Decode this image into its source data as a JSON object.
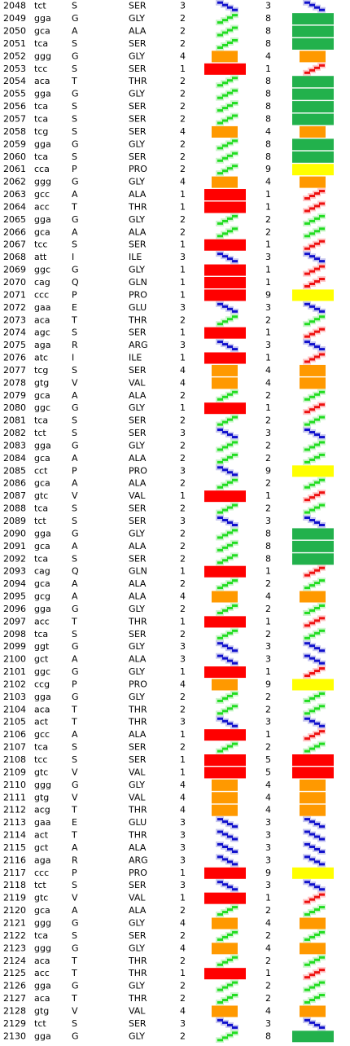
{
  "table": {
    "rows": [
      [
        2048,
        "tct",
        "S",
        "SER",
        3,
        3
      ],
      [
        2049,
        "gga",
        "G",
        "GLY",
        2,
        8
      ],
      [
        2050,
        "gca",
        "A",
        "ALA",
        2,
        8
      ],
      [
        2051,
        "tca",
        "S",
        "SER",
        2,
        8
      ],
      [
        2052,
        "ggg",
        "G",
        "GLY",
        4,
        4
      ],
      [
        2053,
        "tcc",
        "S",
        "SER",
        1,
        1
      ],
      [
        2054,
        "aca",
        "T",
        "THR",
        2,
        8
      ],
      [
        2055,
        "gga",
        "G",
        "GLY",
        2,
        8
      ],
      [
        2056,
        "tca",
        "S",
        "SER",
        2,
        8
      ],
      [
        2057,
        "tca",
        "S",
        "SER",
        2,
        8
      ],
      [
        2058,
        "tcg",
        "S",
        "SER",
        4,
        4
      ],
      [
        2059,
        "gga",
        "G",
        "GLY",
        2,
        8
      ],
      [
        2060,
        "tca",
        "S",
        "SER",
        2,
        8
      ],
      [
        2061,
        "cca",
        "P",
        "PRO",
        2,
        9
      ],
      [
        2062,
        "ggg",
        "G",
        "GLY",
        4,
        4
      ],
      [
        2063,
        "gcc",
        "A",
        "ALA",
        1,
        1
      ],
      [
        2064,
        "acc",
        "T",
        "THR",
        1,
        1
      ],
      [
        2065,
        "gga",
        "G",
        "GLY",
        2,
        2
      ],
      [
        2066,
        "gca",
        "A",
        "ALA",
        2,
        2
      ],
      [
        2067,
        "tcc",
        "S",
        "SER",
        1,
        1
      ],
      [
        2068,
        "att",
        "I",
        "ILE",
        3,
        3
      ],
      [
        2069,
        "ggc",
        "G",
        "GLY",
        1,
        1
      ],
      [
        2070,
        "cag",
        "Q",
        "GLN",
        1,
        1
      ],
      [
        2071,
        "ccc",
        "P",
        "PRO",
        1,
        9
      ],
      [
        2072,
        "gaa",
        "E",
        "GLU",
        3,
        3
      ],
      [
        2073,
        "aca",
        "T",
        "THR",
        2,
        2
      ],
      [
        2074,
        "agc",
        "S",
        "SER",
        1,
        1
      ],
      [
        2075,
        "aga",
        "R",
        "ARG",
        3,
        3
      ],
      [
        2076,
        "atc",
        "I",
        "ILE",
        1,
        1
      ],
      [
        2077,
        "tcg",
        "S",
        "SER",
        4,
        4
      ],
      [
        2078,
        "gtg",
        "V",
        "VAL",
        4,
        4
      ],
      [
        2079,
        "gca",
        "A",
        "ALA",
        2,
        2
      ],
      [
        2080,
        "ggc",
        "G",
        "GLY",
        1,
        1
      ],
      [
        2081,
        "tca",
        "S",
        "SER",
        2,
        2
      ],
      [
        2082,
        "tct",
        "S",
        "SER",
        3,
        3
      ],
      [
        2083,
        "gga",
        "G",
        "GLY",
        2,
        2
      ],
      [
        2084,
        "gca",
        "A",
        "ALA",
        2,
        2
      ],
      [
        2085,
        "cct",
        "P",
        "PRO",
        3,
        9
      ],
      [
        2086,
        "gca",
        "A",
        "ALA",
        2,
        2
      ],
      [
        2087,
        "gtc",
        "V",
        "VAL",
        1,
        1
      ],
      [
        2088,
        "tca",
        "S",
        "SER",
        2,
        2
      ],
      [
        2089,
        "tct",
        "S",
        "SER",
        3,
        3
      ],
      [
        2090,
        "gga",
        "G",
        "GLY",
        2,
        8
      ],
      [
        2091,
        "gca",
        "A",
        "ALA",
        2,
        8
      ],
      [
        2092,
        "tca",
        "S",
        "SER",
        2,
        8
      ],
      [
        2093,
        "cag",
        "Q",
        "GLN",
        1,
        1
      ],
      [
        2094,
        "gca",
        "A",
        "ALA",
        2,
        2
      ],
      [
        2095,
        "gcg",
        "A",
        "ALA",
        4,
        4
      ],
      [
        2096,
        "gga",
        "G",
        "GLY",
        2,
        2
      ],
      [
        2097,
        "acc",
        "T",
        "THR",
        1,
        1
      ],
      [
        2098,
        "tca",
        "S",
        "SER",
        2,
        2
      ],
      [
        2099,
        "ggt",
        "G",
        "GLY",
        3,
        3
      ],
      [
        2100,
        "gct",
        "A",
        "ALA",
        3,
        3
      ],
      [
        2101,
        "ggc",
        "G",
        "GLY",
        1,
        1
      ],
      [
        2102,
        "ccg",
        "P",
        "PRO",
        4,
        9
      ],
      [
        2103,
        "gga",
        "G",
        "GLY",
        2,
        2
      ],
      [
        2104,
        "aca",
        "T",
        "THR",
        2,
        2
      ],
      [
        2105,
        "act",
        "T",
        "THR",
        3,
        3
      ],
      [
        2106,
        "gcc",
        "A",
        "ALA",
        1,
        1
      ],
      [
        2107,
        "tca",
        "S",
        "SER",
        2,
        2
      ],
      [
        2108,
        "tcc",
        "S",
        "SER",
        1,
        5
      ],
      [
        2109,
        "gtc",
        "V",
        "VAL",
        1,
        5
      ],
      [
        2110,
        "ggg",
        "G",
        "GLY",
        4,
        4
      ],
      [
        2111,
        "gtg",
        "V",
        "VAL",
        4,
        4
      ],
      [
        2112,
        "acg",
        "T",
        "THR",
        4,
        4
      ],
      [
        2113,
        "gaa",
        "E",
        "GLU",
        3,
        3
      ],
      [
        2114,
        "act",
        "T",
        "THR",
        3,
        3
      ],
      [
        2115,
        "gct",
        "A",
        "ALA",
        3,
        3
      ],
      [
        2116,
        "aga",
        "R",
        "ARG",
        3,
        3
      ],
      [
        2117,
        "ccc",
        "P",
        "PRO",
        1,
        9
      ],
      [
        2118,
        "tct",
        "S",
        "SER",
        3,
        3
      ],
      [
        2119,
        "gtc",
        "V",
        "VAL",
        1,
        1
      ],
      [
        2120,
        "gca",
        "A",
        "ALA",
        2,
        2
      ],
      [
        2121,
        "ggg",
        "G",
        "GLY",
        4,
        4
      ],
      [
        2122,
        "tca",
        "S",
        "SER",
        2,
        2
      ],
      [
        2123,
        "ggg",
        "G",
        "GLY",
        4,
        4
      ],
      [
        2124,
        "aca",
        "T",
        "THR",
        2,
        2
      ],
      [
        2125,
        "acc",
        "T",
        "THR",
        1,
        1
      ],
      [
        2126,
        "gga",
        "G",
        "GLY",
        2,
        2
      ],
      [
        2127,
        "aca",
        "T",
        "THR",
        2,
        2
      ],
      [
        2128,
        "gtg",
        "V",
        "VAL",
        4,
        4
      ],
      [
        2129,
        "tct",
        "S",
        "SER",
        3,
        3
      ],
      [
        2130,
        "gga",
        "G",
        "GLY",
        2,
        8
      ]
    ]
  }
}
